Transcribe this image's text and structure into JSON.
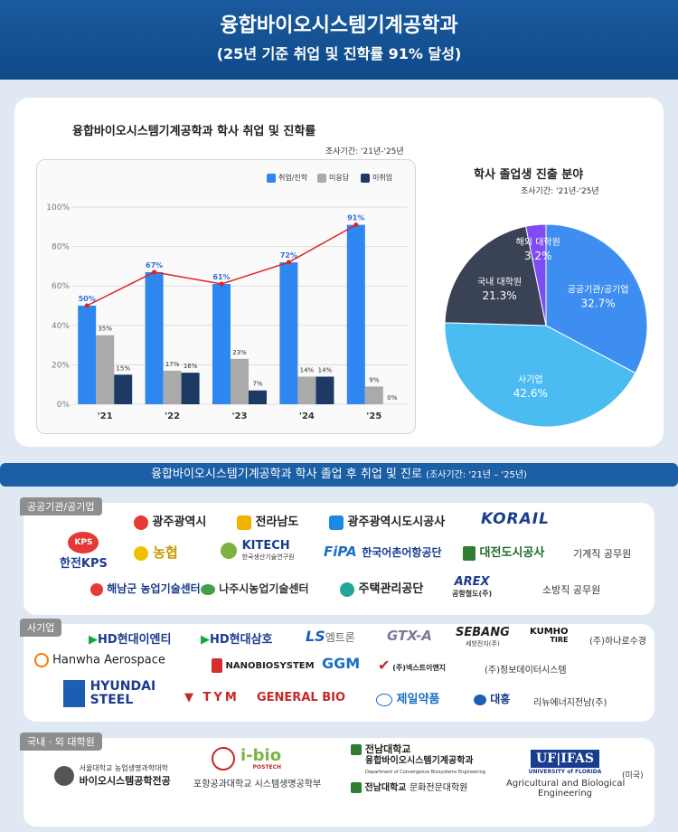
{
  "header": {
    "title": "융합바이오시스템기계공학과",
    "subtitle": "(25년 기준 취업 및 진학률 91% 달성)"
  },
  "colors": {
    "employed": "#2e86f0",
    "unanswered": "#aaaaaa",
    "unemployed": "#1c3a64",
    "trend_line": "#e02020",
    "pie_public": "#3d8ef0",
    "pie_private": "#4bbcf2",
    "pie_domestic_grad": "#3a4256",
    "pie_overseas_grad": "#7f4bf2"
  },
  "chart_data": [
    {
      "type": "bar",
      "title": "융합바이오시스템기계공학과  학사 취업 및 진학률",
      "subtitle": "조사기간: '21년-'25년",
      "categories": [
        "'21",
        "'22",
        "'23",
        "'24",
        "'25"
      ],
      "series": [
        {
          "name": "취업/진학",
          "values": [
            50,
            67,
            61,
            72,
            91
          ],
          "labels": [
            "50%",
            "67%",
            "61%",
            "72%",
            "91%"
          ]
        },
        {
          "name": "미응답",
          "values": [
            35,
            17,
            23,
            14,
            9
          ],
          "labels": [
            "35%",
            "17%",
            "23%",
            "14%",
            "9%"
          ]
        },
        {
          "name": "미취업",
          "values": [
            15,
            16,
            7,
            14,
            0
          ],
          "labels": [
            "15%",
            "16%",
            "7%",
            "14%",
            "0%"
          ]
        }
      ],
      "yticks": [
        "0%",
        "20%",
        "40%",
        "60%",
        "80%",
        "100%"
      ],
      "ylim": [
        0,
        100
      ],
      "grid": true,
      "legend": "top-right"
    },
    {
      "type": "pie",
      "title": "학사 졸업생 진출 분야",
      "subtitle": "조사기간: '21년-'25년",
      "slices": [
        {
          "name": "공공기관/공기업",
          "value": 32.7,
          "label": "32.7%"
        },
        {
          "name": "사기업",
          "value": 42.6,
          "label": "42.6%"
        },
        {
          "name": "국내 대학원",
          "value": 21.3,
          "label": "21.3%"
        },
        {
          "name": "해외 대학원",
          "value": 3.2,
          "label": "3.2%"
        }
      ]
    }
  ],
  "section": {
    "title": "융합바이오시스템기계공학과 학사 졸업 후 취업 및 진로",
    "period": "(조사기간: '21년 – '25년)"
  },
  "public": {
    "tag": "공공기관/공기업",
    "items": [
      "광주광역시",
      "전라남도",
      "광주광역시도시공사",
      "KORAIL",
      "KPS",
      "한전KPS",
      "농협",
      "KITECH",
      "한국생산기술연구원",
      "FiPA",
      "한국어촌어항공단",
      "대전도시공사",
      "기계직 공무원",
      "해남군 농업기술센터",
      "나주시농업기술센터",
      "주택관리공단",
      "AREX",
      "공항철도(주)",
      "소방직 공무원"
    ]
  },
  "private": {
    "tag": "사기업",
    "items": [
      "HD현대이엔티",
      "HD현대삼호",
      "LS",
      "엠트론",
      "GTX-A",
      "SEBANG",
      "세방전지(주)",
      "KUMHO",
      "TIRE",
      "(주)하나로수경",
      "Hanwha Aerospace",
      "NANOBIOSYSTEM",
      "GGM",
      "(주)넥스트이앤지",
      "(주)정보데이터시스템",
      "HYUNDAI",
      "STEEL",
      "TYM",
      "GENERAL BIO",
      "제일약품",
      "대흥",
      "리뉴에너지전남(주)"
    ]
  },
  "grad": {
    "tag": "국내 · 외 대학원",
    "items": [
      "서울대학교 농업생명과학대학",
      "바이오시스템공학전공",
      "i-bio",
      "POSTECH",
      "포항공과대학교 시스템생명공학부",
      "전남대학교",
      "융합바이오시스템기계공학과",
      "Department of Convergence Biosystems Engineering",
      "전남대학교",
      "문화전문대학원",
      "UF|IFAS",
      "UNIVERSITY of FLORIDA",
      "(미국)",
      "Agricultural and Biological",
      "Engineering"
    ]
  }
}
